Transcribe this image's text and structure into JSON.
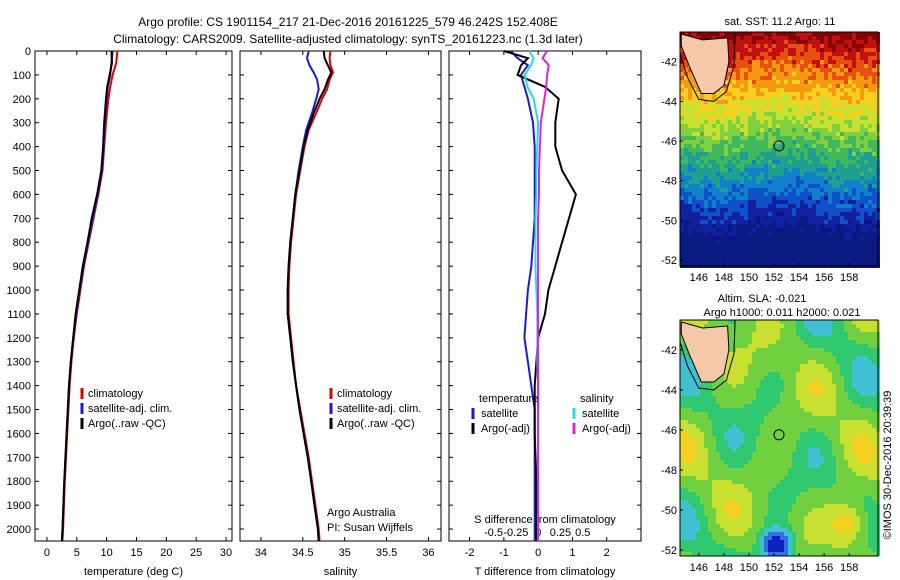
{
  "header": {
    "line1": "Argo profile: CS 1901154_217 21-Dec-2016 20161225_579 46.242S 152.408E",
    "line2": "Climatology: CARS2009. Satellite-adjusted climatology: synTS_20161223.nc (1.3d later)"
  },
  "colors": {
    "climatology": "#e00000",
    "satellite": "#1a1adc",
    "argo": "#000000",
    "t_satellite": "#1a1adc",
    "s_satellite": "#22e0e0",
    "s_argo": "#e020e0"
  },
  "annotations": {
    "org": "Argo Australia",
    "pi": "PI: Susan Wijffels",
    "imos": "©IMOS 30-Dec-2016 20:39:39"
  },
  "map_sst": {
    "title": "sat. SST: 11.2 Argo: 11",
    "x_ticks": [
      146,
      148,
      150,
      152,
      154,
      156,
      158
    ],
    "y_ticks": [
      -42,
      -44,
      -46,
      -48,
      -50,
      -52
    ],
    "xlim": [
      144.5,
      160.3
    ],
    "ylim": [
      -52.3,
      -40.5
    ],
    "marker": {
      "lon": 152.4,
      "lat": -46.24
    }
  },
  "map_sla": {
    "title1": "Altim. SLA: -0.021",
    "title2": "Argo h1000: 0.011 h2000: 0.021",
    "x_ticks": [
      146,
      148,
      150,
      152,
      154,
      156,
      158
    ],
    "y_ticks": [
      -42,
      -44,
      -46,
      -48,
      -50,
      -52
    ],
    "xlim": [
      144.5,
      160.3
    ],
    "ylim": [
      -52.3,
      -40.5
    ],
    "marker": {
      "lon": 152.4,
      "lat": -46.24
    }
  },
  "chart_data": [
    {
      "type": "line",
      "xlabel": "temperature (deg C)",
      "ylabel": "",
      "xlim": [
        -2,
        31
      ],
      "ylim": [
        2050,
        0
      ],
      "x_ticks": [
        0,
        5,
        10,
        15,
        20,
        25,
        30
      ],
      "y_ticks": [
        0,
        100,
        200,
        300,
        400,
        500,
        600,
        700,
        800,
        900,
        1000,
        1100,
        1200,
        1300,
        1400,
        1500,
        1600,
        1700,
        1800,
        1900,
        2000
      ],
      "legend": [
        "climatology",
        "satellite-adj. clim.",
        "Argo(..raw -QC)"
      ],
      "legend_placement": "lower-right",
      "depth": [
        0,
        50,
        100,
        150,
        200,
        300,
        400,
        500,
        600,
        700,
        800,
        900,
        1000,
        1100,
        1200,
        1300,
        1400,
        1600,
        1800,
        2000,
        2050
      ],
      "series": [
        {
          "name": "climatology",
          "values": [
            11.8,
            11.6,
            11.0,
            10.6,
            10.3,
            9.9,
            9.6,
            9.3,
            8.6,
            7.8,
            7.0,
            6.2,
            5.6,
            5.0,
            4.5,
            4.1,
            3.8,
            3.4,
            3.0,
            2.7,
            2.6
          ]
        },
        {
          "name": "satellite-adj. clim.",
          "values": [
            11.0,
            10.8,
            10.6,
            10.2,
            10.0,
            9.7,
            9.5,
            9.2,
            8.5,
            7.7,
            6.9,
            6.1,
            5.5,
            4.9,
            4.4,
            4.0,
            3.7,
            3.3,
            2.9,
            2.6,
            2.5
          ]
        },
        {
          "name": "Argo(..raw -QC)",
          "values": [
            10.8,
            10.9,
            10.5,
            10.1,
            9.9,
            9.6,
            9.4,
            9.1,
            8.4,
            7.5,
            6.8,
            6.0,
            5.4,
            4.8,
            4.4,
            4.0,
            3.7,
            3.3,
            2.9,
            2.6,
            2.5
          ]
        }
      ]
    },
    {
      "type": "line",
      "xlabel": "salinity",
      "ylabel": "",
      "xlim": [
        33.75,
        36.15
      ],
      "ylim": [
        2050,
        0
      ],
      "x_ticks": [
        34,
        34.5,
        35,
        35.5,
        36
      ],
      "x_tick_labels": [
        "34",
        "34.5",
        "35",
        "35.5",
        "36"
      ],
      "legend": [
        "climatology",
        "satellite-adj. clim.",
        "Argo(..raw -QC)"
      ],
      "legend_placement": "lower-right",
      "depth": [
        0,
        30,
        60,
        90,
        120,
        160,
        200,
        260,
        330,
        400,
        500,
        600,
        700,
        800,
        900,
        1000,
        1100,
        1200,
        1300,
        1400,
        1500,
        1600,
        1700,
        1800,
        1900,
        2000,
        2050
      ],
      "series": [
        {
          "name": "climatology",
          "values": [
            34.83,
            34.82,
            34.83,
            34.86,
            34.82,
            34.79,
            34.73,
            34.66,
            34.57,
            34.52,
            34.47,
            34.42,
            34.39,
            34.36,
            34.34,
            34.33,
            34.33,
            34.36,
            34.39,
            34.42,
            34.47,
            34.52,
            34.57,
            34.61,
            34.65,
            34.69,
            34.7
          ]
        },
        {
          "name": "satellite-adj. clim.",
          "values": [
            34.57,
            34.55,
            34.58,
            34.63,
            34.67,
            34.69,
            34.66,
            34.61,
            34.54,
            34.5,
            34.45,
            34.41,
            34.38,
            34.35,
            34.33,
            34.32,
            34.32,
            34.35,
            34.38,
            34.42,
            34.46,
            34.51,
            34.56,
            34.6,
            34.64,
            34.68,
            34.69
          ]
        },
        {
          "name": "Argo(..raw -QC)",
          "values": [
            34.75,
            34.76,
            34.8,
            34.84,
            34.8,
            34.76,
            34.7,
            34.63,
            34.56,
            34.51,
            34.46,
            34.41,
            34.38,
            34.35,
            34.33,
            34.32,
            34.32,
            34.35,
            34.38,
            34.42,
            34.46,
            34.51,
            34.56,
            34.6,
            34.64,
            34.68,
            34.69
          ]
        }
      ]
    },
    {
      "type": "line",
      "xlabel": "T difference from climatology",
      "title_bottom": "S difference from climatology",
      "xlim": [
        -2.6,
        3.0
      ],
      "ylim": [
        2050,
        0
      ],
      "x_ticks": [
        -2,
        -1,
        0,
        1,
        2
      ],
      "x_tick_labels": [
        "-2",
        "-1",
        "0",
        "1",
        "2"
      ],
      "top_axis_ticks": [
        -0.5,
        -0.25,
        0,
        0.25,
        0.5
      ],
      "top_axis_labels": [
        "-0.5",
        "-0.25",
        "0",
        "0.25",
        "0.5"
      ],
      "legend_groups": [
        {
          "heading": "temperature",
          "entries": [
            "satellite",
            "Argo(-adj)"
          ]
        },
        {
          "heading": "salinity",
          "entries": [
            "satellite",
            "Argo(-adj)"
          ]
        }
      ],
      "legend_placement": "lower-center",
      "depth": [
        0,
        30,
        60,
        100,
        150,
        200,
        300,
        400,
        500,
        600,
        700,
        800,
        900,
        1000,
        1100,
        1200,
        1300,
        1400,
        1500,
        1600,
        1800,
        2000,
        2050
      ],
      "series": [
        {
          "name": "T satellite",
          "values": [
            -0.8,
            -0.6,
            -0.3,
            -0.5,
            -0.4,
            -0.3,
            -0.15,
            -0.1,
            -0.1,
            -0.1,
            -0.1,
            -0.15,
            -0.2,
            -0.3,
            -0.35,
            -0.4,
            -0.3,
            -0.2,
            -0.1,
            -0.1,
            -0.1,
            -0.1,
            -0.1
          ]
        },
        {
          "name": "T Argo(-adj)",
          "values": [
            -1.0,
            -0.3,
            -0.5,
            -0.6,
            0.2,
            0.6,
            0.5,
            0.5,
            0.7,
            1.1,
            0.9,
            0.7,
            0.5,
            0.3,
            0.2,
            0.0,
            -0.05,
            -0.1,
            -0.1,
            -0.1,
            -0.05,
            -0.05,
            -0.05
          ]
        },
        {
          "name": "S satellite",
          "values": [
            -0.1,
            -0.05,
            -0.08,
            -0.15,
            -0.12,
            -0.05,
            0.0,
            -0.01,
            -0.02,
            -0.02,
            -0.03,
            -0.03,
            -0.03,
            -0.02,
            -0.01,
            -0.01,
            -0.01,
            0.0,
            0.0,
            0.0,
            0.0,
            0.0,
            0.0
          ]
        },
        {
          "name": "S Argo(-adj)",
          "values": [
            0.1,
            0.05,
            0.12,
            0.1,
            0.09,
            0.07,
            0.03,
            0.02,
            0.01,
            0.01,
            0.0,
            0.0,
            0.0,
            0.0,
            0.0,
            0.0,
            0.0,
            0.0,
            0.0,
            0.0,
            0.0,
            0.0,
            0.0
          ]
        }
      ]
    }
  ]
}
